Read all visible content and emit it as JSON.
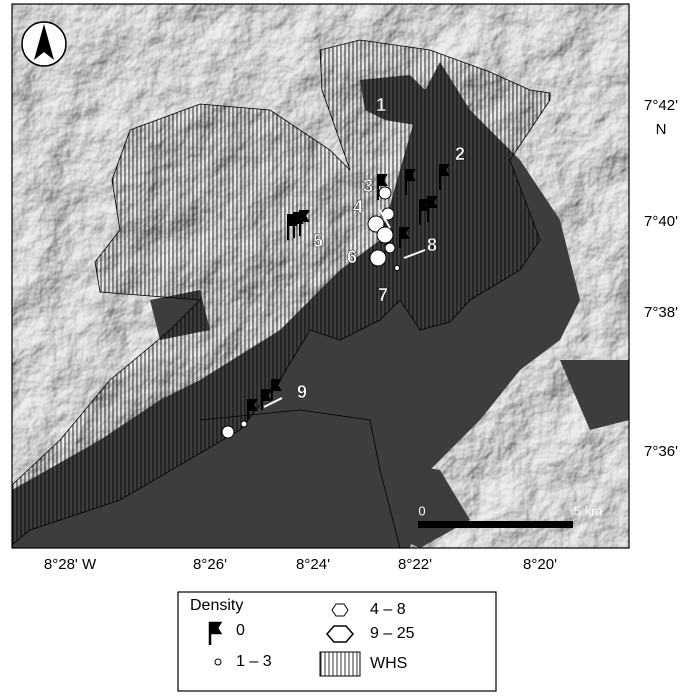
{
  "map": {
    "x_labels": [
      "8°28' W",
      "8°26'",
      "8°24'",
      "8°22'",
      "8°20'"
    ],
    "y_labels": [
      "7°42'",
      "N",
      "7°40'",
      "7°38'",
      "7°36'"
    ],
    "site_labels": [
      "1",
      "2",
      "3",
      "4",
      "5",
      "6",
      "7",
      "8",
      "9"
    ],
    "scale": {
      "start": "0",
      "end": "5 km"
    }
  },
  "legend": {
    "title": "Density",
    "items": [
      "0",
      "1 – 3",
      "4 – 8",
      "9 – 25",
      "WHS"
    ]
  }
}
